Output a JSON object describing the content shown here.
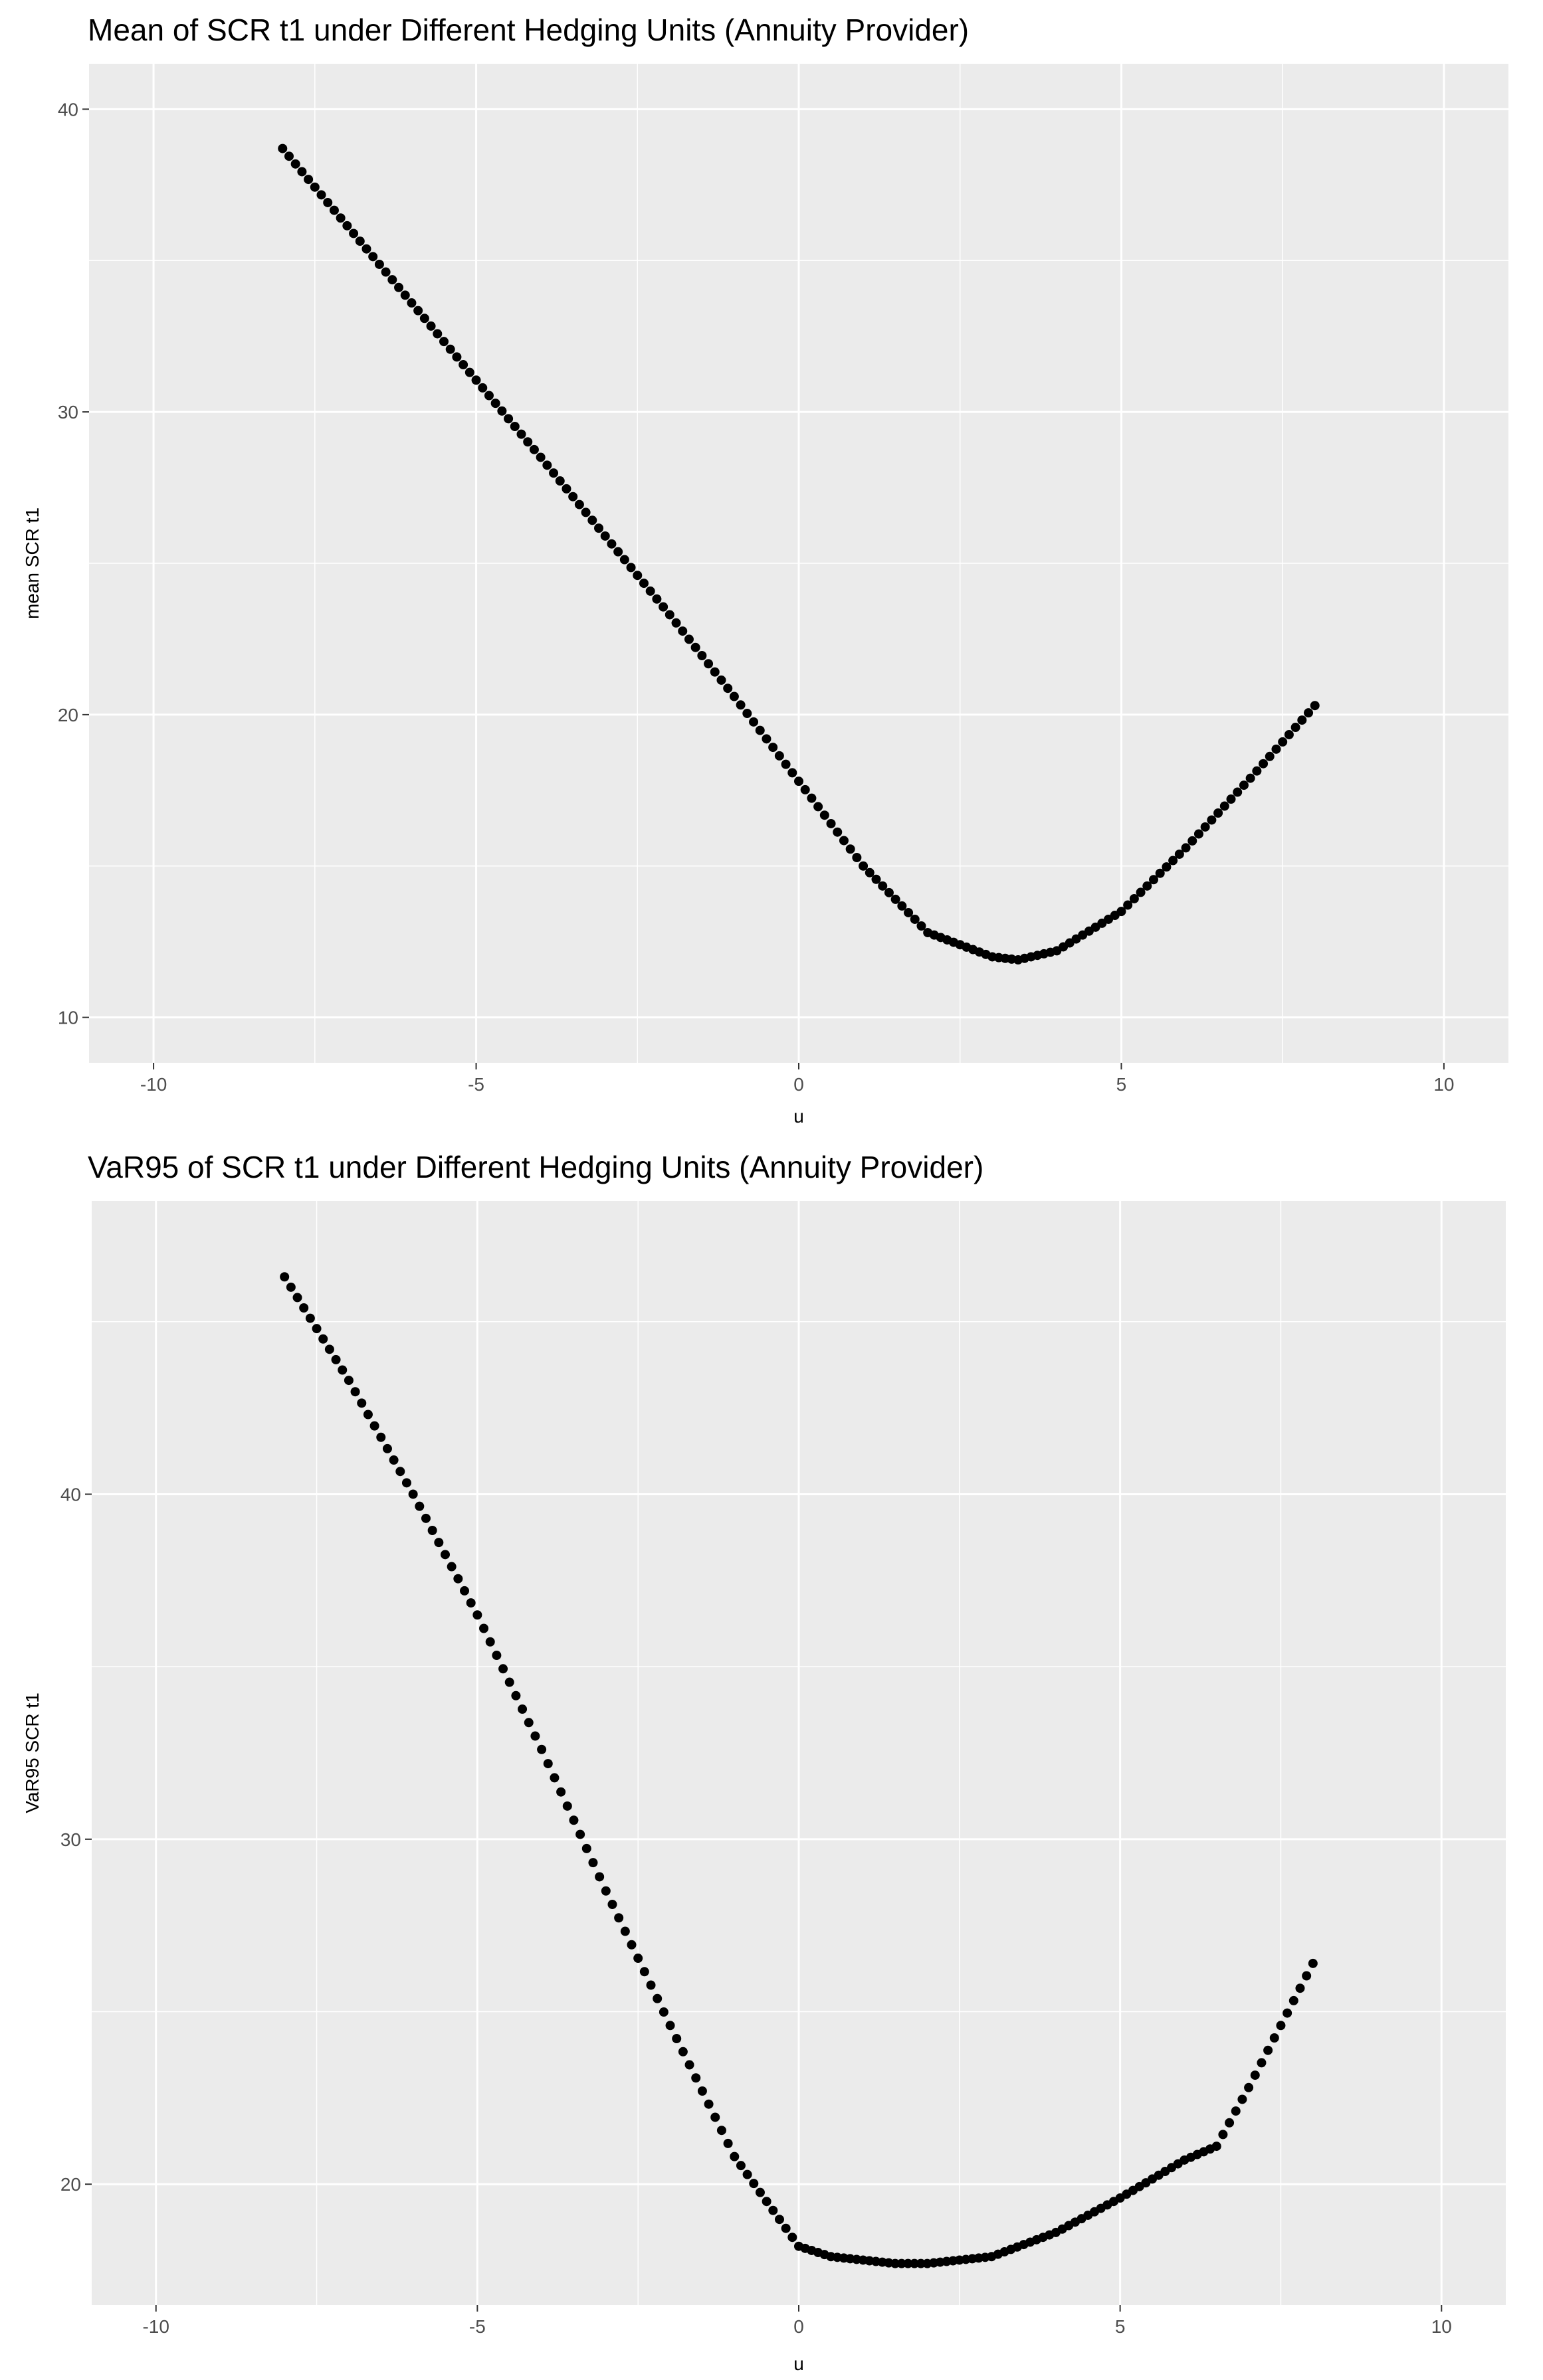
{
  "chart_data": [
    {
      "type": "scatter",
      "title": "Mean of SCR t1 under Different Hedging Units (Annuity Provider)",
      "xlabel": "u",
      "ylabel": "mean SCR t1",
      "xlim": [
        -11,
        11
      ],
      "ylim": [
        8.5,
        41.5
      ],
      "x_ticks": [
        -10,
        -5,
        0,
        5,
        10
      ],
      "y_ticks": [
        10,
        20,
        30,
        40
      ],
      "x_tick_labels": [
        "-10",
        "-5",
        "0",
        "5",
        "10"
      ],
      "y_tick_labels": [
        "10",
        "20",
        "30",
        "40"
      ],
      "grid": true,
      "point_color": "#000000",
      "background": "#ebebeb",
      "curve_keypoints": {
        "x": [
          -8,
          -6,
          -4,
          -2,
          -1,
          0,
          1,
          2,
          3,
          3.4,
          4,
          5,
          6,
          7,
          8
        ],
        "y": [
          38.7,
          33.6,
          28.5,
          23.3,
          20.6,
          17.8,
          15.0,
          12.8,
          12.0,
          11.9,
          12.2,
          13.5,
          15.6,
          17.9,
          20.3
        ]
      },
      "point_step": 0.1
    },
    {
      "type": "scatter",
      "title": "VaR95 of SCR t1 under Different Hedging Units (Annuity Provider)",
      "xlabel": "u",
      "ylabel": "VaR95 SCR t1",
      "xlim": [
        -11,
        11
      ],
      "ylim": [
        16.5,
        48.5
      ],
      "x_ticks": [
        -10,
        -5,
        0,
        5,
        10
      ],
      "y_ticks": [
        20,
        30,
        40
      ],
      "x_tick_labels": [
        "-10",
        "-5",
        "0",
        "5",
        "10"
      ],
      "y_tick_labels": [
        "20",
        "30",
        "40"
      ],
      "grid": true,
      "point_color": "#000000",
      "background": "#ebebeb",
      "curve_keypoints": {
        "x": [
          -8,
          -7,
          -6,
          -5,
          -4,
          -3,
          -2,
          -1,
          0,
          0.5,
          1,
          1.5,
          2,
          3,
          4,
          5,
          6,
          6.5,
          7,
          7.5,
          8
        ],
        "y": [
          46.3,
          43.3,
          40.0,
          36.5,
          32.6,
          28.5,
          24.6,
          20.8,
          18.2,
          17.9,
          17.8,
          17.7,
          17.7,
          17.9,
          18.6,
          19.6,
          20.7,
          21.1,
          22.8,
          24.6,
          26.4
        ]
      },
      "point_step": 0.1
    }
  ]
}
